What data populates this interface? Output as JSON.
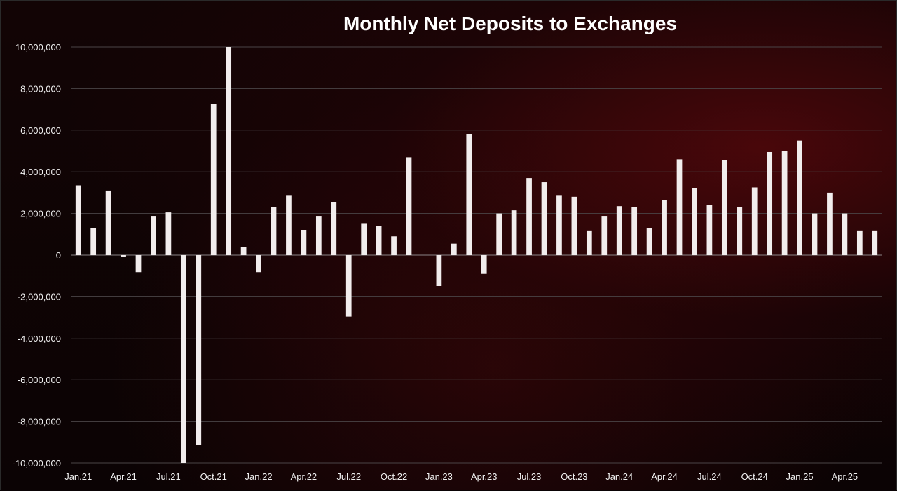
{
  "chart_data": {
    "type": "bar",
    "title": "Monthly Net Deposits to Exchanges",
    "xlabel": "",
    "ylabel": "",
    "ylim": [
      -10000000,
      10000000
    ],
    "yticks": [
      10000000,
      8000000,
      6000000,
      4000000,
      2000000,
      0,
      -2000000,
      -4000000,
      -6000000,
      -8000000,
      -10000000
    ],
    "ytick_labels": [
      "10,000,000",
      "8,000,000",
      "6,000,000",
      "4,000,000",
      "2,000,000",
      "0",
      "-2,000,000",
      "-4,000,000",
      "-6,000,000",
      "-8,000,000",
      "-10,000,000"
    ],
    "xtick_labels": [
      "Jan.21",
      "Apr.21",
      "Jul.21",
      "Oct.21",
      "Jan.22",
      "Apr.22",
      "Jul.22",
      "Oct.22",
      "Jan.23",
      "Apr.23",
      "Jul.23",
      "Oct.23",
      "Jan.24",
      "Apr.24",
      "Jul.24",
      "Oct.24",
      "Jan.25",
      "Apr.25"
    ],
    "xtick_every": 3,
    "grid": true,
    "bar_color": "#f2eded",
    "categories": [
      "Jan.21",
      "Feb.21",
      "Mar.21",
      "Apr.21",
      "May.21",
      "Jun.21",
      "Jul.21",
      "Aug.21",
      "Sep.21",
      "Oct.21",
      "Nov.21",
      "Dec.21",
      "Jan.22",
      "Feb.22",
      "Mar.22",
      "Apr.22",
      "May.22",
      "Jun.22",
      "Jul.22",
      "Aug.22",
      "Sep.22",
      "Oct.22",
      "Nov.22",
      "Dec.22",
      "Jan.23",
      "Feb.23",
      "Mar.23",
      "Apr.23",
      "May.23",
      "Jun.23",
      "Jul.23",
      "Aug.23",
      "Sep.23",
      "Oct.23",
      "Nov.23",
      "Dec.23",
      "Jan.24",
      "Feb.24",
      "Mar.24",
      "Apr.24",
      "May.24",
      "Jun.24",
      "Jul.24",
      "Aug.24",
      "Sep.24",
      "Oct.24",
      "Nov.24",
      "Dec.24",
      "Jan.25",
      "Feb.25",
      "Mar.25",
      "Apr.25",
      "May.25",
      "Jun.25"
    ],
    "values": [
      3350000,
      1300000,
      3100000,
      -100000,
      -850000,
      1850000,
      2050000,
      -10000000,
      -9150000,
      7250000,
      10000000,
      400000,
      -850000,
      2300000,
      2850000,
      1200000,
      1850000,
      2550000,
      -2950000,
      1500000,
      1400000,
      900000,
      4700000,
      0,
      -1500000,
      550000,
      5800000,
      -900000,
      2000000,
      2150000,
      3700000,
      3500000,
      2850000,
      2800000,
      1150000,
      1850000,
      2350000,
      2300000,
      1300000,
      2650000,
      4600000,
      3200000,
      2400000,
      4550000,
      2300000,
      3250000,
      4950000,
      5000000,
      5500000,
      2000000,
      3000000,
      2000000,
      1150000,
      1150000
    ]
  }
}
